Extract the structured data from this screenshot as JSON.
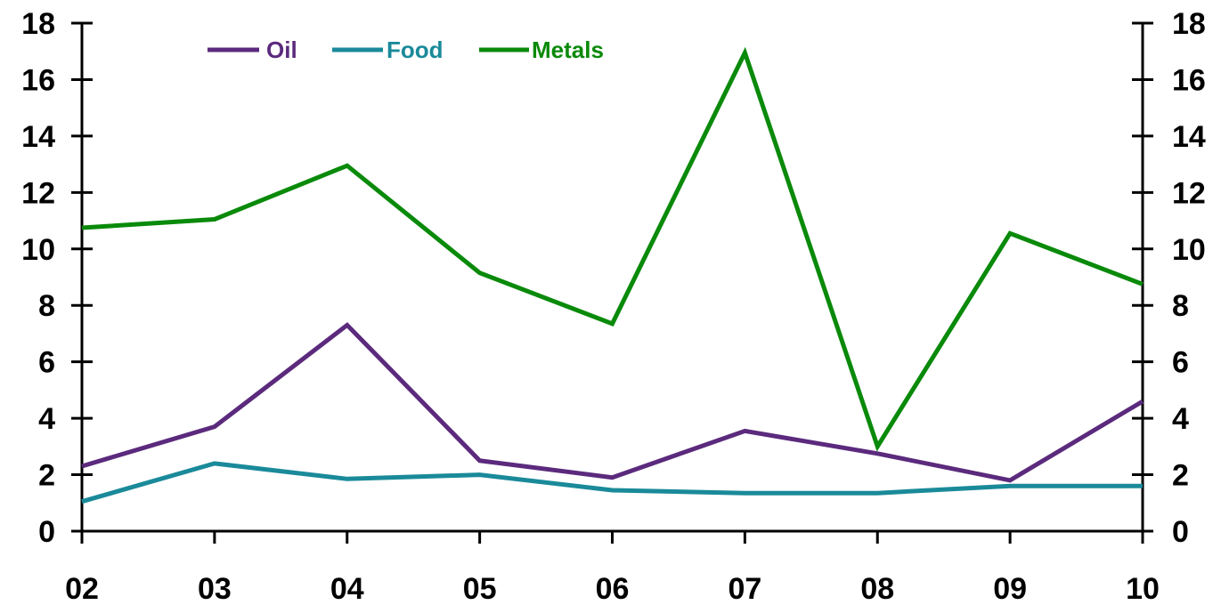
{
  "chart_data": {
    "type": "line",
    "x": [
      "02",
      "03",
      "04",
      "05",
      "06",
      "07",
      "08",
      "09",
      "10"
    ],
    "ylim": [
      0,
      18
    ],
    "y_ticks": [
      "0",
      "2",
      "4",
      "6",
      "8",
      "10",
      "12",
      "14",
      "16",
      "18"
    ],
    "y_ticks_right": [
      "0",
      "2",
      "4",
      "6",
      "8",
      "10",
      "12",
      "14",
      "16",
      "18"
    ],
    "grid": false,
    "legend_position": "top-left",
    "series": [
      {
        "name": "Oil",
        "color": "#5b2a7d",
        "values": [
          2.3,
          3.7,
          7.3,
          2.5,
          1.9,
          3.55,
          2.75,
          1.8,
          4.6
        ]
      },
      {
        "name": "Food",
        "color": "#1a8a9a",
        "values": [
          1.05,
          2.4,
          1.85,
          2.0,
          1.45,
          1.35,
          1.35,
          1.6,
          1.6
        ]
      },
      {
        "name": "Metals",
        "color": "#0a8a0a",
        "values": [
          10.75,
          11.05,
          12.95,
          9.15,
          7.35,
          16.95,
          3.0,
          10.55,
          8.75
        ]
      }
    ],
    "title": "",
    "xlabel": "",
    "ylabel": ""
  }
}
